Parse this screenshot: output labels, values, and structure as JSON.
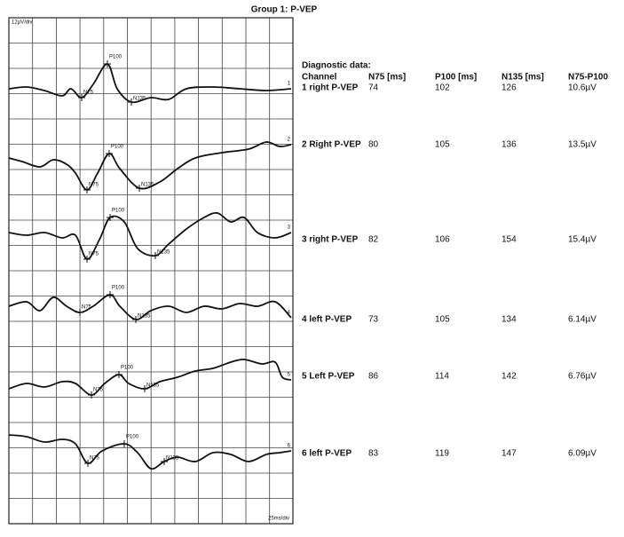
{
  "title": "Group 1: P-VEP",
  "graph": {
    "scale_y": "12µV/div",
    "scale_x": "25ms/div",
    "traces": [
      {
        "number": "1",
        "peaks": [
          "N75",
          "P100",
          "N135"
        ]
      },
      {
        "number": "2",
        "peaks": [
          "N75",
          "P100",
          "N135"
        ]
      },
      {
        "number": "3",
        "peaks": [
          "N75",
          "P100",
          "N135"
        ]
      },
      {
        "number": "4",
        "peaks": [
          "N75",
          "P100",
          "N135"
        ]
      },
      {
        "number": "5",
        "peaks": [
          "N75",
          "P100",
          "N135"
        ]
      },
      {
        "number": "6",
        "peaks": [
          "N75",
          "P100",
          "N135"
        ]
      }
    ]
  },
  "table": {
    "heading": "Diagnostic data:",
    "columns": [
      "Channel",
      "N75 [ms]",
      "P100 [ms]",
      "N135 [ms]",
      "N75-P100"
    ],
    "rows": [
      [
        "1 right P-VEP",
        74,
        102,
        126,
        "10.6µV"
      ],
      [
        "2 Right P-VEP",
        80,
        105,
        136,
        "13.5µV"
      ],
      [
        "3 right P-VEP",
        82,
        106,
        154,
        "15.4µV"
      ],
      [
        "4 left P-VEP",
        73,
        105,
        134,
        "6.14µV"
      ],
      [
        "5 Left P-VEP",
        86,
        114,
        142,
        "6.76µV"
      ],
      [
        "6 left P-VEP",
        83,
        119,
        147,
        "6.09µV"
      ]
    ]
  }
}
